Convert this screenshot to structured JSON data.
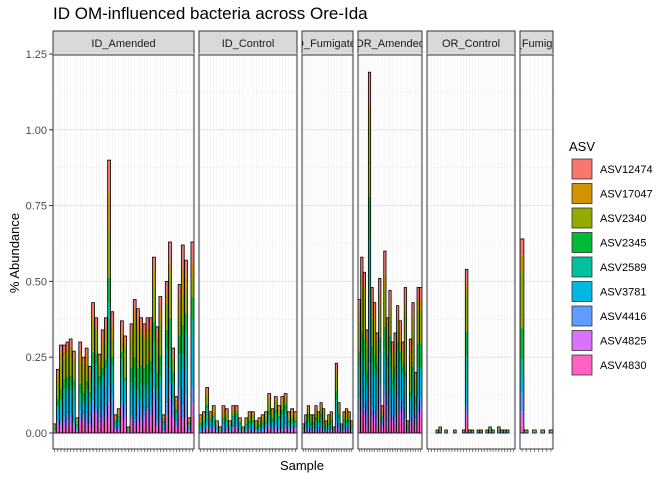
{
  "chart_data": {
    "type": "bar",
    "subtype": "stacked-faceted",
    "title": "ID OM-influenced bacteria across Ore-Ida",
    "xlabel": "Sample",
    "ylabel": "% Abundance",
    "ylim": [
      0,
      1.25
    ],
    "yticks": [
      "0.00",
      "0.25",
      "0.50",
      "0.75",
      "1.00",
      "1.25"
    ],
    "grid": true,
    "legend_position": "right",
    "legend_title": "ASV",
    "series": [
      {
        "name": "ASV12474",
        "color": "#F8766D"
      },
      {
        "name": "ASV17047",
        "color": "#D39200"
      },
      {
        "name": "ASV2340",
        "color": "#93AA00"
      },
      {
        "name": "ASV2345",
        "color": "#00BA38"
      },
      {
        "name": "ASV2589",
        "color": "#00C19F"
      },
      {
        "name": "ASV3781",
        "color": "#00B9E3"
      },
      {
        "name": "ASV4416",
        "color": "#619CFF"
      },
      {
        "name": "ASV4825",
        "color": "#DB72FB"
      },
      {
        "name": "ASV4830",
        "color": "#FF61C3"
      }
    ],
    "facets": [
      {
        "label": "ID_Amended",
        "sample_totals": [
          0.03,
          0.21,
          0.29,
          0.29,
          0.3,
          0.31,
          0.27,
          0.05,
          0.3,
          0.25,
          0.28,
          0.22,
          0.43,
          0.38,
          0.26,
          0.34,
          0.38,
          0.9,
          0.4,
          0.06,
          0.08,
          0.37,
          0.32,
          0.02,
          0.36,
          0.44,
          0.41,
          0.38,
          0.36,
          0.38,
          0.38,
          0.58,
          0.35,
          0.45,
          0.06,
          0.5,
          0.63,
          0.28,
          0.12,
          0.49,
          0.62,
          0.57,
          0.05,
          0.63
        ]
      },
      {
        "label": "ID_Control",
        "sample_totals": [
          0.06,
          0.07,
          0.15,
          0.07,
          0.09,
          0.04,
          0.02,
          0.09,
          0.08,
          0.04,
          0.09,
          0.09,
          0.05,
          0.02,
          0.05,
          0.07,
          0.07,
          0.04,
          0.05,
          0.06,
          0.07,
          0.13,
          0.08,
          0.12,
          0.09,
          0.12,
          0.13,
          0.07,
          0.08,
          0.07
        ]
      },
      {
        "label": "ID_Fumigated",
        "sample_totals": [
          0.03,
          0.06,
          0.09,
          0.06,
          0.06,
          0.09,
          0.07,
          0.1,
          0.08,
          0.04,
          0.06,
          0.07,
          0.02,
          0.23,
          0.1,
          0.03,
          0.07,
          0.08,
          0.07,
          0.04
        ]
      },
      {
        "label": "OR_Amended",
        "sample_totals": [
          0.44,
          0.58,
          0.53,
          0.34,
          1.19,
          0.48,
          0.43,
          0.33,
          0.51,
          0.09,
          0.6,
          0.38,
          0.47,
          0.3,
          0.33,
          0.42,
          0.37,
          0.3,
          0.48,
          0.04,
          0.31,
          0.43,
          0.2,
          0.48,
          0.48
        ]
      },
      {
        "label": "OR_Control",
        "sample_totals": [
          0.0,
          0.0,
          0.0,
          0.01,
          0.02,
          0.0,
          0.01,
          0.0,
          0.0,
          0.01,
          0.0,
          0.0,
          0.01,
          0.54,
          0.01,
          0.01,
          0.0,
          0.01,
          0.01,
          0.0,
          0.01,
          0.02,
          0.01,
          0.0,
          0.02,
          0.01,
          0.01,
          0.01,
          0.0,
          0.0
        ]
      },
      {
        "label": "OR_Fumigated",
        "sample_totals": [
          0.64,
          0.01,
          0.0,
          0.01,
          0.0,
          0.01,
          0.0,
          0.01
        ]
      }
    ]
  }
}
